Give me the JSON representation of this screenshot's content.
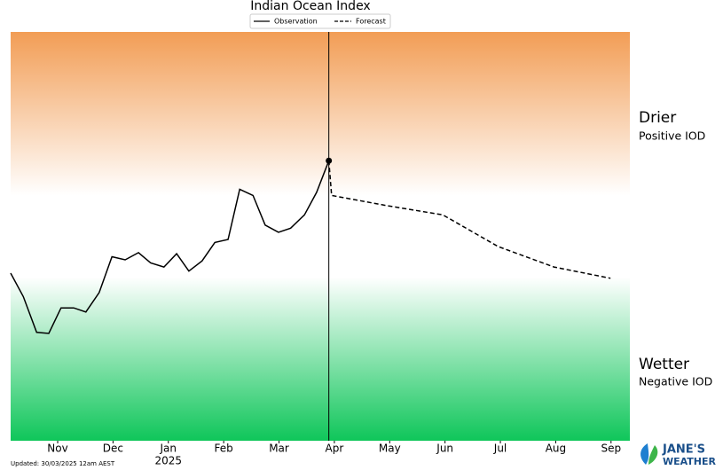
{
  "chart_data": {
    "type": "line",
    "title": "Indian Ocean Index",
    "xlim": [
      0.15,
      11.34
    ],
    "xticks": [
      {
        "value": 1,
        "label": "Nov"
      },
      {
        "value": 2,
        "label": "Dec"
      },
      {
        "value": 3,
        "label": "Jan"
      },
      {
        "value": 4,
        "label": "Feb"
      },
      {
        "value": 5,
        "label": "Mar"
      },
      {
        "value": 6,
        "label": "Apr"
      },
      {
        "value": 7,
        "label": "May"
      },
      {
        "value": 8,
        "label": "Jun"
      },
      {
        "value": 9,
        "label": "Jul"
      },
      {
        "value": 10,
        "label": "Aug"
      },
      {
        "value": 11,
        "label": "Sep"
      }
    ],
    "year_label": "2025",
    "ylim": [
      -2,
      2
    ],
    "neutral_band": [
      -0.4,
      0.4
    ],
    "colors": {
      "drier": "#f29d55",
      "wetter": "#0fc65a"
    },
    "legend": "top",
    "series": [
      {
        "name": "Observation",
        "color": "#000000",
        "style": "solid",
        "x": [
          0.15,
          0.38,
          0.62,
          0.84,
          1.06,
          1.29,
          1.51,
          1.75,
          1.98,
          2.22,
          2.46,
          2.68,
          2.92,
          3.15,
          3.37,
          3.61,
          3.84,
          4.08,
          4.29,
          4.53,
          4.75,
          4.99,
          5.21,
          5.46,
          5.68,
          5.9
        ],
        "values": [
          -0.36,
          -0.59,
          -0.94,
          -0.95,
          -0.7,
          -0.7,
          -0.74,
          -0.55,
          -0.2,
          -0.23,
          -0.16,
          -0.26,
          -0.3,
          -0.17,
          -0.34,
          -0.24,
          -0.06,
          -0.03,
          0.46,
          0.4,
          0.11,
          0.04,
          0.08,
          0.21,
          0.43,
          0.74
        ]
      },
      {
        "name": "Forecast",
        "color": "#000000",
        "style": "dashed",
        "x": [
          5.9,
          5.95,
          6.95,
          7.96,
          8.96,
          9.97,
          10.99
        ],
        "values": [
          0.74,
          0.4,
          0.3,
          0.21,
          -0.1,
          -0.3,
          -0.41
        ]
      }
    ],
    "zones": [
      {
        "name": "Drier",
        "subtitle": "Positive IOD"
      },
      {
        "name": "Wetter",
        "subtitle": "Negative IOD"
      }
    ],
    "footer": "Updated: 30/03/2025 12am AEST",
    "logo": {
      "line1": "JANE'S",
      "line2": "WEATHER"
    }
  }
}
